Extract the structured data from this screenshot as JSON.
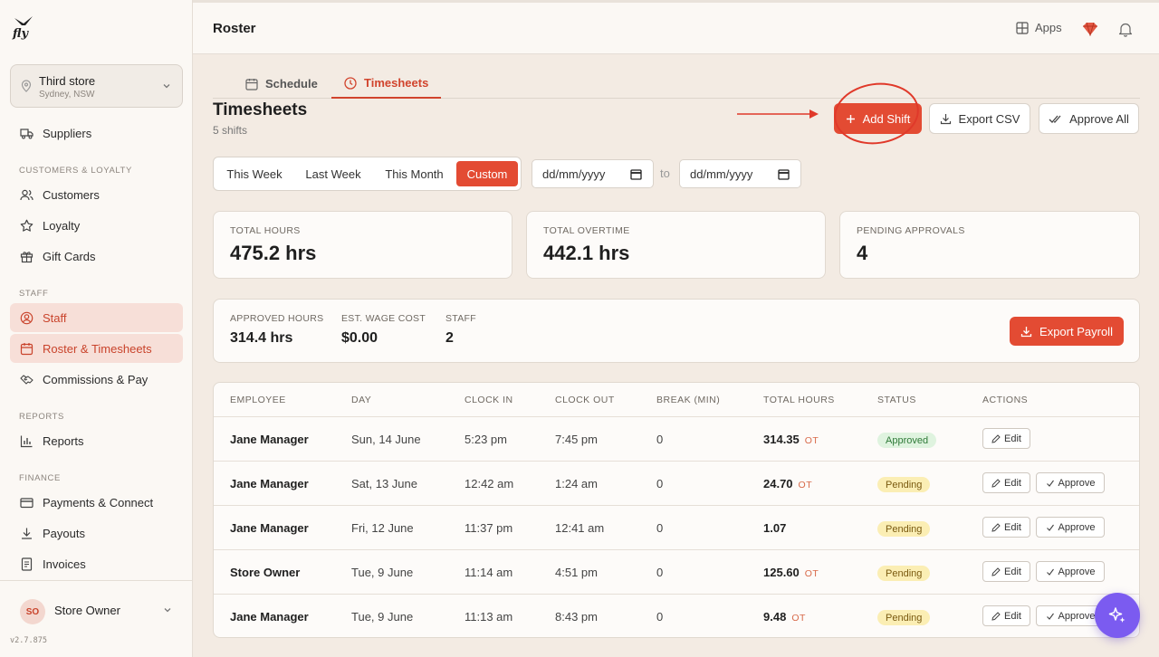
{
  "brand": {
    "logo_text": "fly"
  },
  "store": {
    "name": "Third store",
    "location": "Sydney, NSW"
  },
  "sidebar": {
    "top_item": {
      "label": "Suppliers",
      "icon": "truck-icon"
    },
    "sections": [
      {
        "title": "CUSTOMERS & LOYALTY",
        "items": [
          {
            "label": "Customers",
            "icon": "users-icon"
          },
          {
            "label": "Loyalty",
            "icon": "star-icon"
          },
          {
            "label": "Gift Cards",
            "icon": "gift-icon"
          }
        ]
      },
      {
        "title": "STAFF",
        "items": [
          {
            "label": "Staff",
            "icon": "user-circle-icon"
          },
          {
            "label": "Roster & Timesheets",
            "icon": "calendar-icon"
          },
          {
            "label": "Commissions & Pay",
            "icon": "handshake-icon"
          }
        ]
      },
      {
        "title": "REPORTS",
        "items": [
          {
            "label": "Reports",
            "icon": "bar-chart-icon"
          }
        ]
      },
      {
        "title": "FINANCE",
        "items": [
          {
            "label": "Payments & Connect",
            "icon": "credit-card-icon"
          },
          {
            "label": "Payouts",
            "icon": "download-icon"
          },
          {
            "label": "Invoices",
            "icon": "file-icon"
          }
        ]
      }
    ],
    "user": {
      "initials": "SO",
      "name": "Store Owner"
    },
    "version": "v2.7.875"
  },
  "topbar": {
    "title": "Roster",
    "apps_label": "Apps"
  },
  "tabs": [
    {
      "label": "Schedule",
      "active": false
    },
    {
      "label": "Timesheets",
      "active": true
    }
  ],
  "page": {
    "title": "Timesheets",
    "subtitle": "5 shifts"
  },
  "actions": {
    "add_shift": "Add Shift",
    "export_csv": "Export CSV",
    "approve_all": "Approve All",
    "export_payroll": "Export Payroll"
  },
  "filters": {
    "ranges": [
      "This Week",
      "Last Week",
      "This Month",
      "Custom"
    ],
    "active_range": "Custom",
    "date_from_placeholder": "dd/mm/yyyy",
    "date_to_placeholder": "dd/mm/yyyy",
    "to_label": "to"
  },
  "stats": [
    {
      "label": "TOTAL HOURS",
      "value": "475.2 hrs"
    },
    {
      "label": "TOTAL OVERTIME",
      "value": "442.1 hrs"
    },
    {
      "label": "PENDING APPROVALS",
      "value": "4"
    }
  ],
  "summary": [
    {
      "label": "APPROVED HOURS",
      "value": "314.4 hrs"
    },
    {
      "label": "EST. WAGE COST",
      "value": "$0.00"
    },
    {
      "label": "STAFF",
      "value": "2"
    }
  ],
  "table": {
    "columns": [
      "EMPLOYEE",
      "DAY",
      "CLOCK IN",
      "CLOCK OUT",
      "BREAK (MIN)",
      "TOTAL HOURS",
      "STATUS",
      "ACTIONS"
    ],
    "ot_label": "OT",
    "edit_label": "Edit",
    "approve_label": "Approve",
    "rows": [
      {
        "employee": "Jane Manager",
        "day": "Sun, 14 June",
        "clock_in": "5:23 pm",
        "clock_out": "7:45 pm",
        "break": "0",
        "hours": "314.35",
        "ot": true,
        "status": "Approved"
      },
      {
        "employee": "Jane Manager",
        "day": "Sat, 13 June",
        "clock_in": "12:42 am",
        "clock_out": "1:24 am",
        "break": "0",
        "hours": "24.70",
        "ot": true,
        "status": "Pending"
      },
      {
        "employee": "Jane Manager",
        "day": "Fri, 12 June",
        "clock_in": "11:37 pm",
        "clock_out": "12:41 am",
        "break": "0",
        "hours": "1.07",
        "ot": false,
        "status": "Pending"
      },
      {
        "employee": "Store Owner",
        "day": "Tue, 9 June",
        "clock_in": "11:14 am",
        "clock_out": "4:51 pm",
        "break": "0",
        "hours": "125.60",
        "ot": true,
        "status": "Pending"
      },
      {
        "employee": "Jane Manager",
        "day": "Tue, 9 June",
        "clock_in": "11:13 am",
        "clock_out": "8:43 pm",
        "break": "0",
        "hours": "9.48",
        "ot": true,
        "status": "Pending"
      }
    ]
  },
  "colors": {
    "accent": "#e34b33",
    "approved_bg": "#dff3df",
    "pending_bg": "#fbeeb4",
    "fab": "#7b5bf0"
  }
}
